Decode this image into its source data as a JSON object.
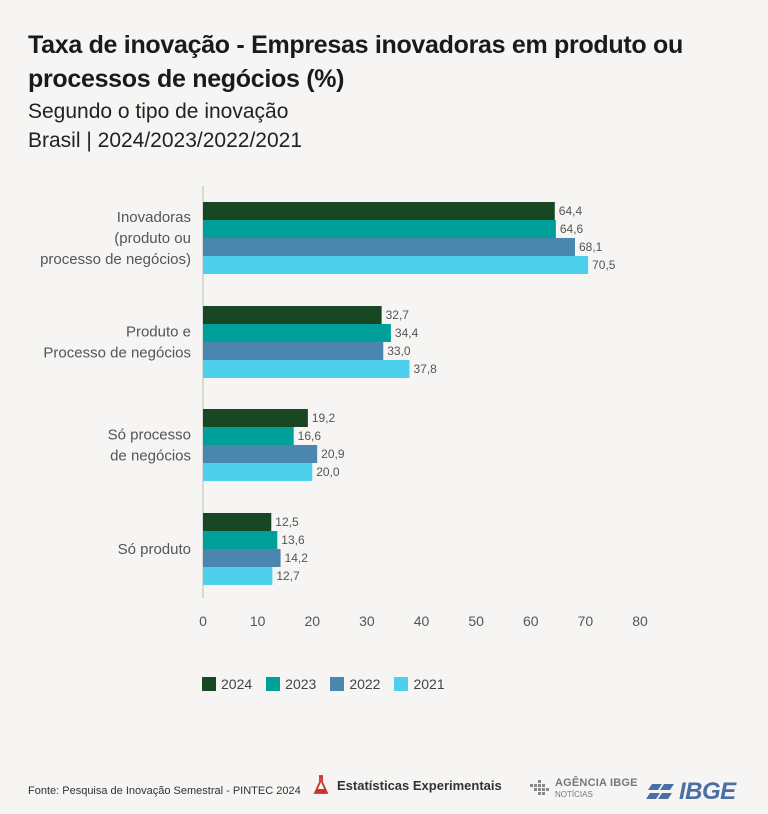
{
  "header": {
    "title": "Taxa de inovação - Empresas inovadoras em produto ou processos de negócios (%)",
    "subtitle": "Segundo o tipo de inovação",
    "subtitle2": "Brasil | 2024/2023/2022/2021"
  },
  "chart_data": {
    "type": "bar",
    "orientation": "horizontal",
    "categories": [
      [
        "Inovadoras",
        "(produto ou",
        "processo de negócios)"
      ],
      [
        "Produto e",
        "Processo de negócios"
      ],
      [
        "Só processo",
        "de negócios"
      ],
      [
        "Só produto"
      ]
    ],
    "series": [
      {
        "name": "2024",
        "color": "#1a4723",
        "values": [
          64.4,
          32.7,
          19.2,
          12.5
        ],
        "labels": [
          "64,4",
          "32,7",
          "19,2",
          "12,5"
        ]
      },
      {
        "name": "2023",
        "color": "#00a09a",
        "values": [
          64.6,
          34.4,
          16.6,
          13.6
        ],
        "labels": [
          "64,6",
          "34,4",
          "16,6",
          "13,6"
        ]
      },
      {
        "name": "2022",
        "color": "#4a86ad",
        "values": [
          68.1,
          33.0,
          20.9,
          14.2
        ],
        "labels": [
          "68,1",
          "33,0",
          "20,9",
          "14,2"
        ]
      },
      {
        "name": "2021",
        "color": "#4dd0ec",
        "values": [
          70.5,
          37.8,
          20.0,
          12.7
        ],
        "labels": [
          "70,5",
          "37,8",
          "20,0",
          "12,7"
        ]
      }
    ],
    "xlim": [
      0,
      80
    ],
    "xticks": [
      "0",
      "10",
      "20",
      "30",
      "40",
      "50",
      "60",
      "70",
      "80"
    ],
    "grid": false,
    "legend_position": "bottom"
  },
  "footer": {
    "source": "Fonte: Pesquisa de Inovação Semestral - PINTEC 2024",
    "experimentais": "Estatísticas Experimentais",
    "agencia": "AGÊNCIA IBGE",
    "agencia_sub": "NOTÍCIAS",
    "ibge": "IBGE"
  }
}
